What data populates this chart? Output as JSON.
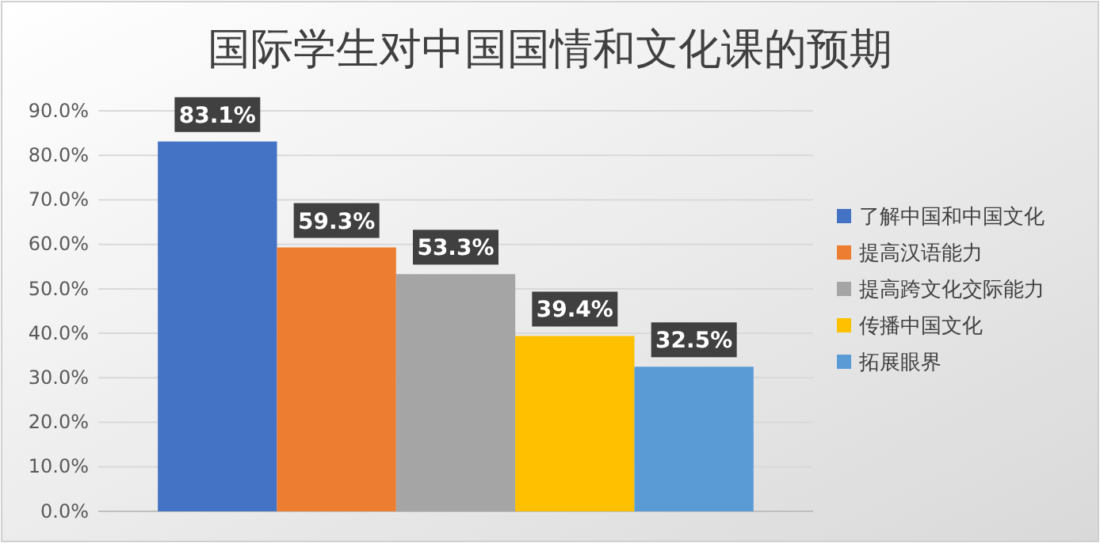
{
  "chart_data": {
    "type": "bar",
    "title": "国际学生对中国国情和文化课的预期",
    "categories": [
      null,
      null,
      null,
      null,
      null
    ],
    "series": [
      {
        "name": "了解中国和中国文化",
        "color": "#4472c4",
        "values": [
          83.1,
          null,
          null,
          null,
          null
        ],
        "value_labels": [
          "83.1%",
          null,
          null,
          null,
          null
        ]
      },
      {
        "name": "提高汉语能力",
        "color": "#ed7d31",
        "values": [
          null,
          59.3,
          null,
          null,
          null
        ],
        "value_labels": [
          null,
          "59.3%",
          null,
          null,
          null
        ]
      },
      {
        "name": "提高跨文化交际能力",
        "color": "#a5a5a5",
        "values": [
          null,
          null,
          53.3,
          null,
          null
        ],
        "value_labels": [
          null,
          null,
          "53.3%",
          null,
          null
        ]
      },
      {
        "name": "传播中国文化",
        "color": "#ffc000",
        "values": [
          null,
          null,
          null,
          39.4,
          null
        ],
        "value_labels": [
          null,
          null,
          null,
          "39.4%",
          null
        ]
      },
      {
        "name": "拓展眼界",
        "color": "#5b9bd5",
        "values": [
          null,
          null,
          null,
          null,
          32.5
        ],
        "value_labels": [
          null,
          null,
          null,
          null,
          "32.5%"
        ]
      }
    ],
    "ylim": [
      0,
      90
    ],
    "yticks": [
      {
        "value": 0,
        "label": "0.0%"
      },
      {
        "value": 10,
        "label": "10.0%"
      },
      {
        "value": 20,
        "label": "20.0%"
      },
      {
        "value": 30,
        "label": "30.0%"
      },
      {
        "value": 40,
        "label": "40.0%"
      },
      {
        "value": 50,
        "label": "50.0%"
      },
      {
        "value": 60,
        "label": "60.0%"
      },
      {
        "value": 70,
        "label": "70.0%"
      },
      {
        "value": 80,
        "label": "80.0%"
      },
      {
        "value": 90,
        "label": "90.0%"
      }
    ],
    "grid": "y",
    "legend": "right"
  }
}
